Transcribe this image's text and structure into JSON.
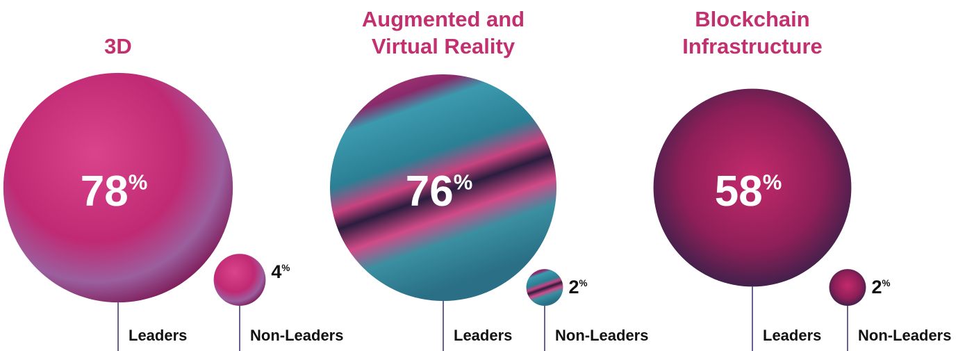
{
  "chart_data": [
    {
      "type": "bubble",
      "title": "3D",
      "categories": [
        "Leaders",
        "Non-Leaders"
      ],
      "values": [
        78,
        4
      ],
      "value_labels": [
        "78%",
        "4%"
      ]
    },
    {
      "type": "bubble",
      "title": "Augmented and\nVirtual Reality",
      "categories": [
        "Leaders",
        "Non-Leaders"
      ],
      "values": [
        76,
        2
      ],
      "value_labels": [
        "76%",
        "2%"
      ]
    },
    {
      "type": "bubble",
      "title": "Blockchain\nInfrastructure",
      "categories": [
        "Leaders",
        "Non-Leaders"
      ],
      "values": [
        58,
        2
      ],
      "value_labels": [
        "58%",
        "2%"
      ]
    }
  ]
}
